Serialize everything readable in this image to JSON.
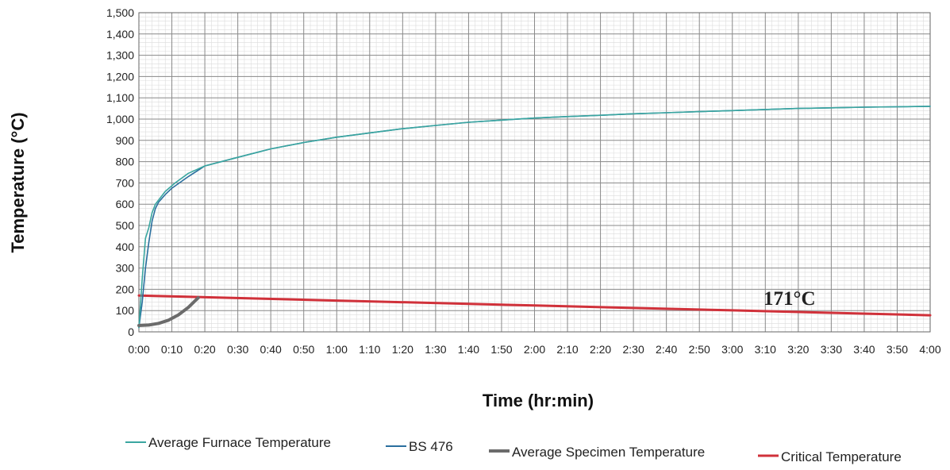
{
  "chart_data": {
    "type": "line",
    "xlabel": "Time (hr:min)",
    "ylabel": "Temperature (°C)",
    "ylim": [
      0,
      1500
    ],
    "xlim": [
      "0:00",
      "4:00"
    ],
    "grid": true,
    "legend_position": "bottom",
    "y_ticks": [
      "0",
      "100",
      "200",
      "300",
      "400",
      "500",
      "600",
      "700",
      "800",
      "900",
      "1,000",
      "1,100",
      "1,200",
      "1,300",
      "1,400",
      "1,500"
    ],
    "x_ticks": [
      "0:00",
      "0:10",
      "0:20",
      "0:30",
      "0:40",
      "0:50",
      "1:00",
      "1:10",
      "1:20",
      "1:30",
      "1:40",
      "1:50",
      "2:00",
      "2:10",
      "2:20",
      "2:30",
      "2:40",
      "2:50",
      "3:00",
      "3:10",
      "3:20",
      "3:30",
      "3:40",
      "3:50",
      "4:00"
    ],
    "annotation": "171°C",
    "series": [
      {
        "name": "Average Furnace Temperature",
        "color": "#3aa6a0",
        "points": [
          [
            "0:00",
            20
          ],
          [
            "0:01",
            250
          ],
          [
            "0:02",
            440
          ],
          [
            "0:03",
            490
          ],
          [
            "0:04",
            560
          ],
          [
            "0:05",
            600
          ],
          [
            "0:08",
            660
          ],
          [
            "0:11",
            700
          ],
          [
            "0:15",
            745
          ],
          [
            "0:20",
            780
          ],
          [
            "0:30",
            820
          ],
          [
            "0:40",
            860
          ],
          [
            "0:50",
            890
          ],
          [
            "1:00",
            915
          ],
          [
            "1:10",
            935
          ],
          [
            "1:20",
            955
          ],
          [
            "1:30",
            970
          ],
          [
            "1:40",
            985
          ],
          [
            "1:50",
            995
          ],
          [
            "2:00",
            1005
          ],
          [
            "2:10",
            1012
          ],
          [
            "2:20",
            1018
          ],
          [
            "2:30",
            1025
          ],
          [
            "2:40",
            1030
          ],
          [
            "2:50",
            1035
          ],
          [
            "3:00",
            1040
          ],
          [
            "3:10",
            1045
          ],
          [
            "3:20",
            1050
          ],
          [
            "3:30",
            1053
          ],
          [
            "3:40",
            1056
          ],
          [
            "3:50",
            1058
          ],
          [
            "4:00",
            1060
          ]
        ]
      },
      {
        "name": "BS 476",
        "color": "#2a6f9e",
        "points": [
          [
            "0:00",
            20
          ],
          [
            "0:01",
            140
          ],
          [
            "0:02",
            300
          ],
          [
            "0:03",
            420
          ],
          [
            "0:04",
            520
          ],
          [
            "0:05",
            580
          ],
          [
            "0:06",
            610
          ],
          [
            "0:08",
            645
          ],
          [
            "0:10",
            675
          ],
          [
            "0:15",
            730
          ],
          [
            "0:20",
            780
          ],
          [
            "0:30",
            820
          ],
          [
            "0:40",
            860
          ],
          [
            "0:50",
            890
          ],
          [
            "1:00",
            915
          ],
          [
            "1:10",
            935
          ],
          [
            "1:20",
            955
          ],
          [
            "1:30",
            970
          ],
          [
            "1:40",
            985
          ],
          [
            "1:50",
            995
          ],
          [
            "2:00",
            1005
          ],
          [
            "2:10",
            1012
          ],
          [
            "2:20",
            1018
          ],
          [
            "2:30",
            1025
          ],
          [
            "2:40",
            1030
          ],
          [
            "2:50",
            1035
          ],
          [
            "3:00",
            1040
          ],
          [
            "3:10",
            1045
          ],
          [
            "3:20",
            1050
          ],
          [
            "3:30",
            1053
          ],
          [
            "3:40",
            1056
          ],
          [
            "3:50",
            1058
          ],
          [
            "4:00",
            1060
          ]
        ]
      },
      {
        "name": "Average Specimen Temperature",
        "color": "#6b6b6b",
        "points": [
          [
            "0:00",
            30
          ],
          [
            "0:03",
            32
          ],
          [
            "0:06",
            40
          ],
          [
            "0:09",
            55
          ],
          [
            "0:12",
            80
          ],
          [
            "0:15",
            115
          ],
          [
            "0:17",
            145
          ],
          [
            "0:18",
            160
          ]
        ]
      },
      {
        "name": "Critical Temperature",
        "color": "#d0313a",
        "points": [
          [
            "0:00",
            171
          ],
          [
            "1:00",
            147
          ],
          [
            "2:00",
            124
          ],
          [
            "3:00",
            101
          ],
          [
            "4:00",
            78
          ]
        ]
      }
    ]
  }
}
